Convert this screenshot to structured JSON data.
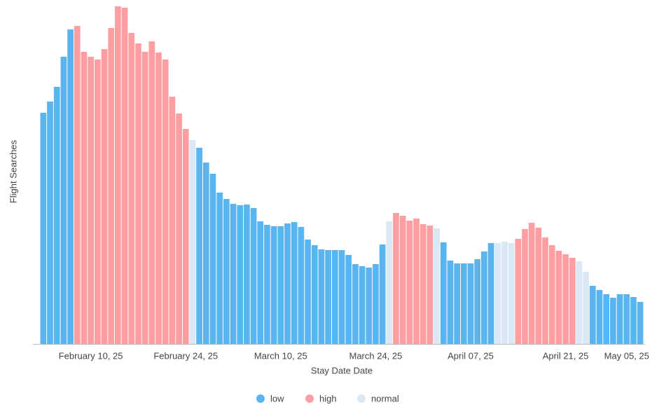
{
  "chart_data": {
    "type": "bar",
    "y_label": "Flight Searches",
    "x_label": "Stay Date Date",
    "x": [
      "2025-02-03",
      "2025-02-04",
      "2025-02-05",
      "2025-02-06",
      "2025-02-07",
      "2025-02-08",
      "2025-02-09",
      "2025-02-10",
      "2025-02-11",
      "2025-02-12",
      "2025-02-13",
      "2025-02-14",
      "2025-02-15",
      "2025-02-16",
      "2025-02-17",
      "2025-02-18",
      "2025-02-19",
      "2025-02-20",
      "2025-02-21",
      "2025-02-22",
      "2025-02-23",
      "2025-02-24",
      "2025-02-25",
      "2025-02-26",
      "2025-02-27",
      "2025-02-28",
      "2025-03-01",
      "2025-03-02",
      "2025-03-03",
      "2025-03-04",
      "2025-03-05",
      "2025-03-06",
      "2025-03-07",
      "2025-03-08",
      "2025-03-09",
      "2025-03-10",
      "2025-03-11",
      "2025-03-12",
      "2025-03-13",
      "2025-03-14",
      "2025-03-15",
      "2025-03-16",
      "2025-03-17",
      "2025-03-18",
      "2025-03-19",
      "2025-03-20",
      "2025-03-21",
      "2025-03-22",
      "2025-03-23",
      "2025-03-24",
      "2025-03-25",
      "2025-03-26",
      "2025-03-27",
      "2025-03-28",
      "2025-03-29",
      "2025-03-30",
      "2025-03-31",
      "2025-04-01",
      "2025-04-02",
      "2025-04-03",
      "2025-04-04",
      "2025-04-05",
      "2025-04-06",
      "2025-04-07",
      "2025-04-08",
      "2025-04-09",
      "2025-04-10",
      "2025-04-11",
      "2025-04-12",
      "2025-04-13",
      "2025-04-14",
      "2025-04-15",
      "2025-04-16",
      "2025-04-17",
      "2025-04-18",
      "2025-04-19",
      "2025-04-20",
      "2025-04-21",
      "2025-04-22",
      "2025-04-23",
      "2025-04-24",
      "2025-04-25",
      "2025-04-26",
      "2025-04-27",
      "2025-04-28",
      "2025-04-29",
      "2025-04-30",
      "2025-05-01",
      "2025-05-02"
    ],
    "values": [
      330,
      346,
      367,
      410,
      449,
      454,
      417,
      410,
      406,
      421,
      451,
      482,
      480,
      444,
      429,
      417,
      432,
      416,
      406,
      353,
      329,
      307,
      291,
      280,
      259,
      243,
      216,
      207,
      200,
      198,
      199,
      194,
      175,
      170,
      168,
      168,
      172,
      174,
      167,
      149,
      141,
      135,
      134,
      134,
      134,
      127,
      114,
      111,
      109,
      114,
      142,
      175,
      187,
      183,
      176,
      179,
      171,
      169,
      165,
      145,
      119,
      115,
      115,
      115,
      121,
      132,
      144,
      144,
      146,
      144,
      150,
      164,
      173,
      166,
      152,
      141,
      133,
      128,
      123,
      118,
      103,
      83,
      77,
      71,
      66,
      71,
      71,
      67,
      60
    ],
    "groups": [
      "low",
      "low",
      "low",
      "low",
      "low",
      "high",
      "high",
      "high",
      "high",
      "high",
      "high",
      "high",
      "high",
      "high",
      "high",
      "high",
      "high",
      "high",
      "high",
      "high",
      "high",
      "high",
      "normal",
      "low",
      "low",
      "low",
      "low",
      "low",
      "low",
      "low",
      "low",
      "low",
      "low",
      "low",
      "low",
      "low",
      "low",
      "low",
      "low",
      "low",
      "low",
      "low",
      "low",
      "low",
      "low",
      "low",
      "low",
      "low",
      "low",
      "low",
      "low",
      "normal",
      "high",
      "high",
      "high",
      "high",
      "high",
      "high",
      "normal",
      "low",
      "low",
      "low",
      "low",
      "low",
      "low",
      "low",
      "low",
      "normal",
      "normal",
      "normal",
      "high",
      "high",
      "high",
      "high",
      "high",
      "high",
      "high",
      "high",
      "high",
      "normal",
      "normal",
      "low",
      "low",
      "low",
      "low",
      "low",
      "low",
      "low",
      "low"
    ],
    "legend": [
      {
        "name": "low",
        "color": "#5ab4f0"
      },
      {
        "name": "high",
        "color": "#ff9ea2"
      },
      {
        "name": "normal",
        "color": "#dae7f5"
      }
    ],
    "xticks": [
      {
        "value": "2025-02-10",
        "label": "February 10, 25"
      },
      {
        "value": "2025-02-24",
        "label": "February 24, 25"
      },
      {
        "value": "2025-03-10",
        "label": "March 10, 25"
      },
      {
        "value": "2025-03-24",
        "label": "March 24, 25"
      },
      {
        "value": "2025-04-07",
        "label": "April 07, 25"
      },
      {
        "value": "2025-04-21",
        "label": "April 21, 25"
      },
      {
        "value": "2025-05-05",
        "label": "May 05, 25"
      }
    ]
  }
}
